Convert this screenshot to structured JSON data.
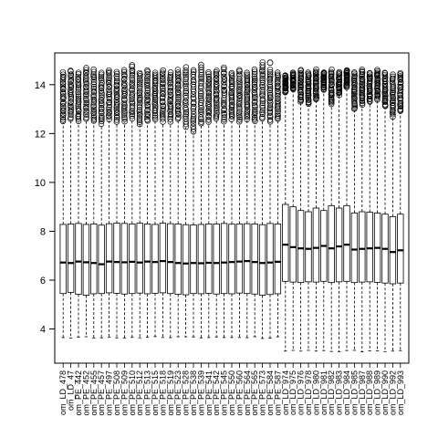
{
  "chart_data": {
    "type": "boxplot",
    "title": "",
    "xlabel": "",
    "ylabel": "",
    "ylim": [
      2.6,
      15.3
    ],
    "yticks": [
      4,
      6,
      8,
      10,
      12,
      14
    ],
    "grid": false,
    "categories": [
      "om_LD_478",
      "om_LD_47",
      "om_PE_442",
      "om_PE_452",
      "om_PE_455",
      "om_PE_457",
      "om_PE_497",
      "om_PE_508",
      "om_PE_509",
      "om_PE_510",
      "om_PE_512",
      "om_PE_513",
      "om_PE_515",
      "om_PE_518",
      "om_PE_519",
      "om_PE_523",
      "om_PE_528",
      "om_PE_538",
      "om_PE_539",
      "om_PE_541",
      "om_PE_542",
      "om_PE_545",
      "om_PE_550",
      "om_PE_560",
      "om_PE_564",
      "om_PE_565",
      "om_PE_573",
      "om_PE_584",
      "om_PE_587",
      "om_LD_974",
      "om_LD_975",
      "om_LD_976",
      "om_LD_978",
      "om_LD_980",
      "om_LD_981",
      "om_LD_982",
      "om_LD_983",
      "om_LD_984",
      "om_LD_985",
      "om_LD_987",
      "om_LD_988",
      "om_LD_989",
      "om_LD_990",
      "om_LD_992",
      "om_LD_993"
    ],
    "groups": [
      {
        "count": 29,
        "box": {
          "wlo": 3.65,
          "q1": 5.45,
          "med": 6.72,
          "q3": 8.3,
          "whi": 12.55
        },
        "medians": [
          6.72,
          6.7,
          6.76,
          6.73,
          6.7,
          6.65,
          6.76,
          6.74,
          6.73,
          6.75,
          6.72,
          6.76,
          6.74,
          6.78,
          6.74,
          6.7,
          6.68,
          6.7,
          6.69,
          6.71,
          6.7,
          6.72,
          6.74,
          6.76,
          6.78,
          6.74,
          6.7,
          6.72,
          6.75
        ],
        "q1s": [
          5.45,
          5.5,
          5.42,
          5.38,
          5.44,
          5.45,
          5.48,
          5.46,
          5.43,
          5.45,
          5.47,
          5.44,
          5.46,
          5.48,
          5.45,
          5.42,
          5.4,
          5.45,
          5.44,
          5.46,
          5.43,
          5.45,
          5.44,
          5.47,
          5.45,
          5.43,
          5.38,
          5.41,
          5.44
        ],
        "q3s": [
          8.28,
          8.3,
          8.32,
          8.28,
          8.3,
          8.25,
          8.31,
          8.33,
          8.32,
          8.3,
          8.33,
          8.3,
          8.28,
          8.33,
          8.31,
          8.3,
          8.27,
          8.26,
          8.28,
          8.3,
          8.3,
          8.32,
          8.29,
          8.3,
          8.31,
          8.3,
          8.27,
          8.32,
          8.3
        ],
        "out_max": [
          14.5,
          14.6,
          14.5,
          14.7,
          14.6,
          14.5,
          14.6,
          14.5,
          14.6,
          14.8,
          14.5,
          14.6,
          14.5,
          14.6,
          14.5,
          14.6,
          14.7,
          14.6,
          14.8,
          14.5,
          14.6,
          14.7,
          14.5,
          14.6,
          14.5,
          14.6,
          14.9,
          14.6,
          14.5
        ],
        "out_min": [
          12.5,
          12.6,
          12.5,
          12.6,
          12.5,
          12.4,
          12.6,
          12.5,
          12.5,
          12.6,
          12.4,
          12.5,
          12.6,
          12.5,
          12.5,
          12.6,
          12.3,
          12.1,
          12.4,
          12.5,
          12.6,
          12.5,
          12.6,
          12.5,
          12.6,
          12.5,
          12.6,
          12.5,
          12.6
        ]
      },
      {
        "count": 16,
        "box": {
          "wlo": 3.1,
          "q1": 5.92,
          "med": 7.3,
          "q3": 8.85,
          "whi": 13.6
        },
        "medians": [
          7.45,
          7.35,
          7.3,
          7.28,
          7.32,
          7.4,
          7.3,
          7.38,
          7.45,
          7.25,
          7.28,
          7.3,
          7.32,
          7.28,
          7.15,
          7.22
        ],
        "q1s": [
          5.95,
          5.92,
          5.9,
          5.93,
          5.92,
          5.95,
          5.9,
          5.93,
          5.95,
          5.9,
          5.92,
          5.93,
          5.91,
          5.88,
          5.85,
          5.88
        ],
        "q3s": [
          9.1,
          9.0,
          8.85,
          8.8,
          8.95,
          8.85,
          9.05,
          8.95,
          9.05,
          8.75,
          8.8,
          8.78,
          8.75,
          8.7,
          8.6,
          8.7
        ],
        "out_max": [
          14.4,
          14.5,
          14.6,
          14.5,
          14.6,
          14.5,
          14.6,
          14.5,
          14.6,
          14.5,
          14.6,
          14.5,
          14.6,
          14.5,
          14.4,
          14.5
        ],
        "out_min": [
          13.7,
          13.8,
          13.3,
          13.2,
          13.4,
          13.8,
          13.2,
          13.6,
          13.9,
          13.0,
          13.2,
          13.3,
          13.4,
          13.1,
          12.7,
          12.9
        ]
      }
    ]
  }
}
